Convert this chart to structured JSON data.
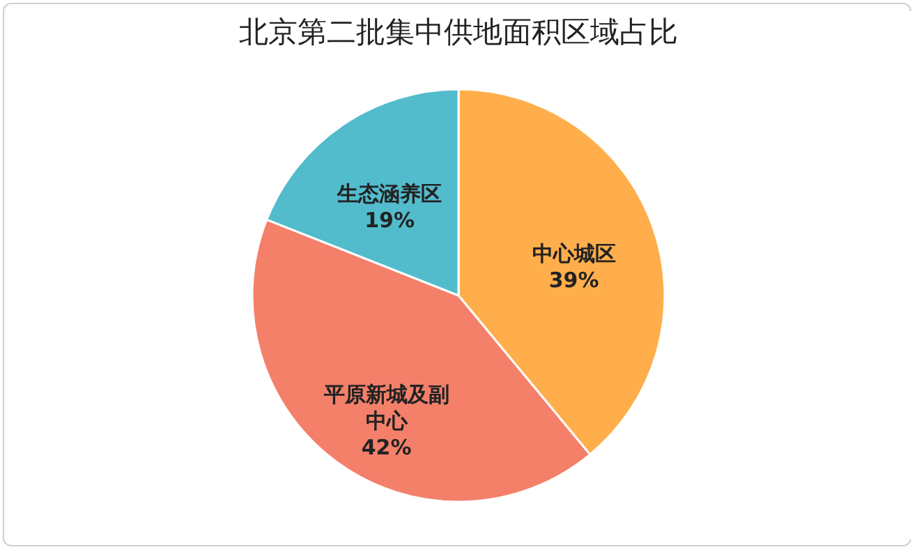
{
  "chart_data": {
    "type": "pie",
    "title": "北京第二批集中供地面积区域占比",
    "categories": [
      "中心城区",
      "平原新城及副中心",
      "生态涵养区"
    ],
    "values": [
      39,
      42,
      19
    ],
    "value_labels": [
      "39%",
      "42%",
      "19%"
    ],
    "colors": [
      "#ffae4b",
      "#f4806a",
      "#52bccc"
    ],
    "legend": false
  }
}
